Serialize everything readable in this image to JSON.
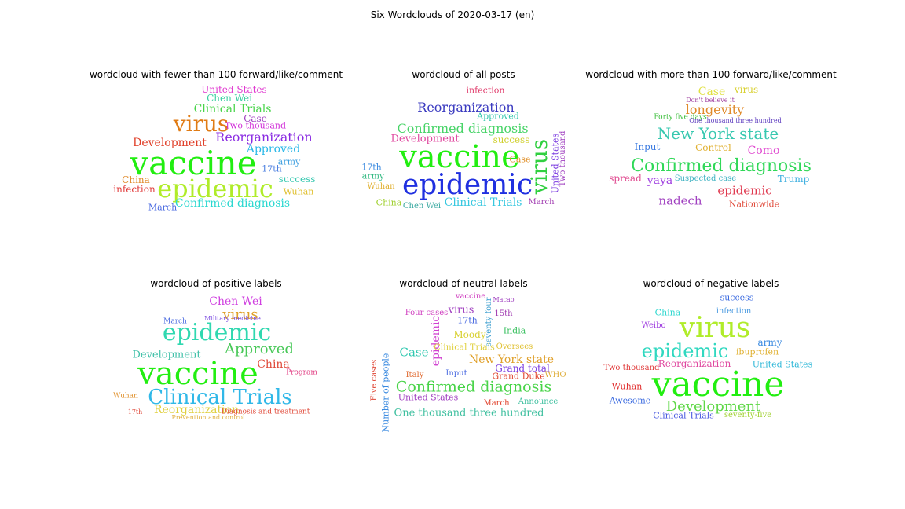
{
  "figure": {
    "suptitle": "Six Wordclouds of 2020-03-17 (en)"
  },
  "panels": [
    {
      "title": "wordcloud with fewer than 100 forward/like/comment",
      "words": [
        {
          "t": "vaccine",
          "c": "#22ee11"
        },
        {
          "t": "epidemic",
          "c": "#b0ec2a"
        },
        {
          "t": "virus",
          "c": "#e07b14"
        },
        {
          "t": "Reorganization",
          "c": "#8a2be2"
        },
        {
          "t": "Development",
          "c": "#e0402a"
        },
        {
          "t": "Clinical Trials",
          "c": "#48d44a"
        },
        {
          "t": "United States",
          "c": "#e03ad0"
        },
        {
          "t": "Chen Wei",
          "c": "#3acfa0"
        },
        {
          "t": "Approved",
          "c": "#2ab8e8"
        },
        {
          "t": "Confirmed diagnosis",
          "c": "#2ad8d0"
        },
        {
          "t": "Two thousand",
          "c": "#d02ad8"
        },
        {
          "t": "Case",
          "c": "#a040c0"
        },
        {
          "t": "China",
          "c": "#e08a2a"
        },
        {
          "t": "infection",
          "c": "#e03a3a"
        },
        {
          "t": "success",
          "c": "#38c8b0"
        },
        {
          "t": "army",
          "c": "#40a0e0"
        },
        {
          "t": "Wuhan",
          "c": "#e0c030"
        },
        {
          "t": "17th",
          "c": "#4a7ee0"
        },
        {
          "t": "March",
          "c": "#4a6ae0"
        }
      ]
    },
    {
      "title": "wordcloud of all posts",
      "words": [
        {
          "t": "vaccine",
          "c": "#22ee11"
        },
        {
          "t": "epidemic",
          "c": "#2030e0"
        },
        {
          "t": "virus",
          "c": "#30d040"
        },
        {
          "t": "Reorganization",
          "c": "#3a3ac0"
        },
        {
          "t": "Confirmed diagnosis",
          "c": "#48d468"
        },
        {
          "t": "Development",
          "c": "#e04aa0"
        },
        {
          "t": "Clinical Trials",
          "c": "#38c8e0"
        },
        {
          "t": "infection",
          "c": "#e03a6a"
        },
        {
          "t": "Approved",
          "c": "#38c8b0"
        },
        {
          "t": "success",
          "c": "#d0d030"
        },
        {
          "t": "United States",
          "c": "#7a3ae0"
        },
        {
          "t": "Two thousand",
          "c": "#a040c0"
        },
        {
          "t": "Case",
          "c": "#e0902a"
        },
        {
          "t": "17th",
          "c": "#3a8ae0"
        },
        {
          "t": "army",
          "c": "#30b880"
        },
        {
          "t": "Wuhan",
          "c": "#e0b030"
        },
        {
          "t": "China",
          "c": "#a0d030"
        },
        {
          "t": "Chen Wei",
          "c": "#38a8a0"
        },
        {
          "t": "March",
          "c": "#a03ab0"
        }
      ]
    },
    {
      "title": "wordcloud with more than 100 forward/like/comment",
      "words": [
        {
          "t": "Confirmed diagnosis",
          "c": "#30d858"
        },
        {
          "t": "New York state",
          "c": "#38c8b0"
        },
        {
          "t": "longevity",
          "c": "#e08a2a"
        },
        {
          "t": "epidemic",
          "c": "#e03a50"
        },
        {
          "t": "nadech",
          "c": "#a040c0"
        },
        {
          "t": "Case",
          "c": "#e0e040"
        },
        {
          "t": "virus",
          "c": "#d8d030"
        },
        {
          "t": "Input",
          "c": "#3a7ae0"
        },
        {
          "t": "Control",
          "c": "#e0b030"
        },
        {
          "t": "Como",
          "c": "#e04ad0"
        },
        {
          "t": "yaya",
          "c": "#a040e0"
        },
        {
          "t": "spread",
          "c": "#e04a90"
        },
        {
          "t": "Trump",
          "c": "#40b0e0"
        },
        {
          "t": "Nationwide",
          "c": "#e04a3a"
        },
        {
          "t": "Suspected case",
          "c": "#3ab0c0"
        },
        {
          "t": "Forty five days",
          "c": "#40c040"
        },
        {
          "t": "Don't believe it",
          "c": "#a040a0"
        },
        {
          "t": "One thousand three hundred",
          "c": "#6040c0"
        }
      ]
    },
    {
      "title": "wordcloud of positive labels",
      "words": [
        {
          "t": "vaccine",
          "c": "#22ee11"
        },
        {
          "t": "epidemic",
          "c": "#30d8b0"
        },
        {
          "t": "Clinical Trials",
          "c": "#30b8e8"
        },
        {
          "t": "virus",
          "c": "#e0a02a"
        },
        {
          "t": "Approved",
          "c": "#48c858"
        },
        {
          "t": "Development",
          "c": "#40c0a8"
        },
        {
          "t": "Reorganization",
          "c": "#e0d040"
        },
        {
          "t": "Chen Wei",
          "c": "#d040e0"
        },
        {
          "t": "China",
          "c": "#e04a3a"
        },
        {
          "t": "Military medicine",
          "c": "#7a4ae0"
        },
        {
          "t": "Diagnosis and treatment",
          "c": "#e04a3a"
        },
        {
          "t": "Program",
          "c": "#e03a80"
        },
        {
          "t": "Wuhan",
          "c": "#e0902a"
        },
        {
          "t": "March",
          "c": "#4a6ae0"
        },
        {
          "t": "17th",
          "c": "#e04a3a"
        },
        {
          "t": "Prevention and control",
          "c": "#e0b040"
        }
      ]
    },
    {
      "title": "wordcloud of neutral labels",
      "words": [
        {
          "t": "Confirmed diagnosis",
          "c": "#48d448"
        },
        {
          "t": "New York state",
          "c": "#e0a02a"
        },
        {
          "t": "One thousand three hundred",
          "c": "#40c0a0"
        },
        {
          "t": "Case",
          "c": "#30c8b0"
        },
        {
          "t": "epidemic",
          "c": "#d040d0"
        },
        {
          "t": "virus",
          "c": "#a040c0"
        },
        {
          "t": "Clinical Trials",
          "c": "#e0d040"
        },
        {
          "t": "Moody",
          "c": "#d8d030"
        },
        {
          "t": "Grand total",
          "c": "#7a3ae0"
        },
        {
          "t": "Grand Duke",
          "c": "#e0402a"
        },
        {
          "t": "Number of people",
          "c": "#3a8ae0"
        },
        {
          "t": "Five cases",
          "c": "#e04a3a"
        },
        {
          "t": "Four cases",
          "c": "#d040c0"
        },
        {
          "t": "United States",
          "c": "#a040c0"
        },
        {
          "t": "India",
          "c": "#3ac060"
        },
        {
          "t": "Oversees",
          "c": "#e0c030"
        },
        {
          "t": "seventy four",
          "c": "#40a0d0"
        },
        {
          "t": "17th",
          "c": "#4a6ae0"
        },
        {
          "t": "15th",
          "c": "#a03ab0"
        },
        {
          "t": "Italy",
          "c": "#e06a30"
        },
        {
          "t": "Input",
          "c": "#4a6ae0"
        },
        {
          "t": "March",
          "c": "#e0402a"
        },
        {
          "t": "Announce",
          "c": "#40c0a0"
        },
        {
          "t": "WHO",
          "c": "#e0b040"
        },
        {
          "t": "Macao",
          "c": "#a040c0"
        },
        {
          "t": "vaccine",
          "c": "#d040c0"
        }
      ]
    },
    {
      "title": "wordcloud of negative labels",
      "words": [
        {
          "t": "vaccine",
          "c": "#22ee11"
        },
        {
          "t": "virus",
          "c": "#b0ec2a"
        },
        {
          "t": "epidemic",
          "c": "#30d8c0"
        },
        {
          "t": "Development",
          "c": "#60d848"
        },
        {
          "t": "Reorganization",
          "c": "#e04aa0"
        },
        {
          "t": "ibuprofen",
          "c": "#e0b030"
        },
        {
          "t": "infection",
          "c": "#4a9ae0"
        },
        {
          "t": "success",
          "c": "#3a6ae0"
        },
        {
          "t": "United States",
          "c": "#30b8d8"
        },
        {
          "t": "Clinical Trials",
          "c": "#4a5ae0"
        },
        {
          "t": "army",
          "c": "#3a8ae0"
        },
        {
          "t": "Two thousand",
          "c": "#e03a3a"
        },
        {
          "t": "Wuhan",
          "c": "#e02a2a"
        },
        {
          "t": "China",
          "c": "#30d8d0"
        },
        {
          "t": "Weibo",
          "c": "#a040e0"
        },
        {
          "t": "Awesome",
          "c": "#3a6ae0"
        },
        {
          "t": "seventy-five",
          "c": "#a0d030"
        }
      ]
    }
  ]
}
